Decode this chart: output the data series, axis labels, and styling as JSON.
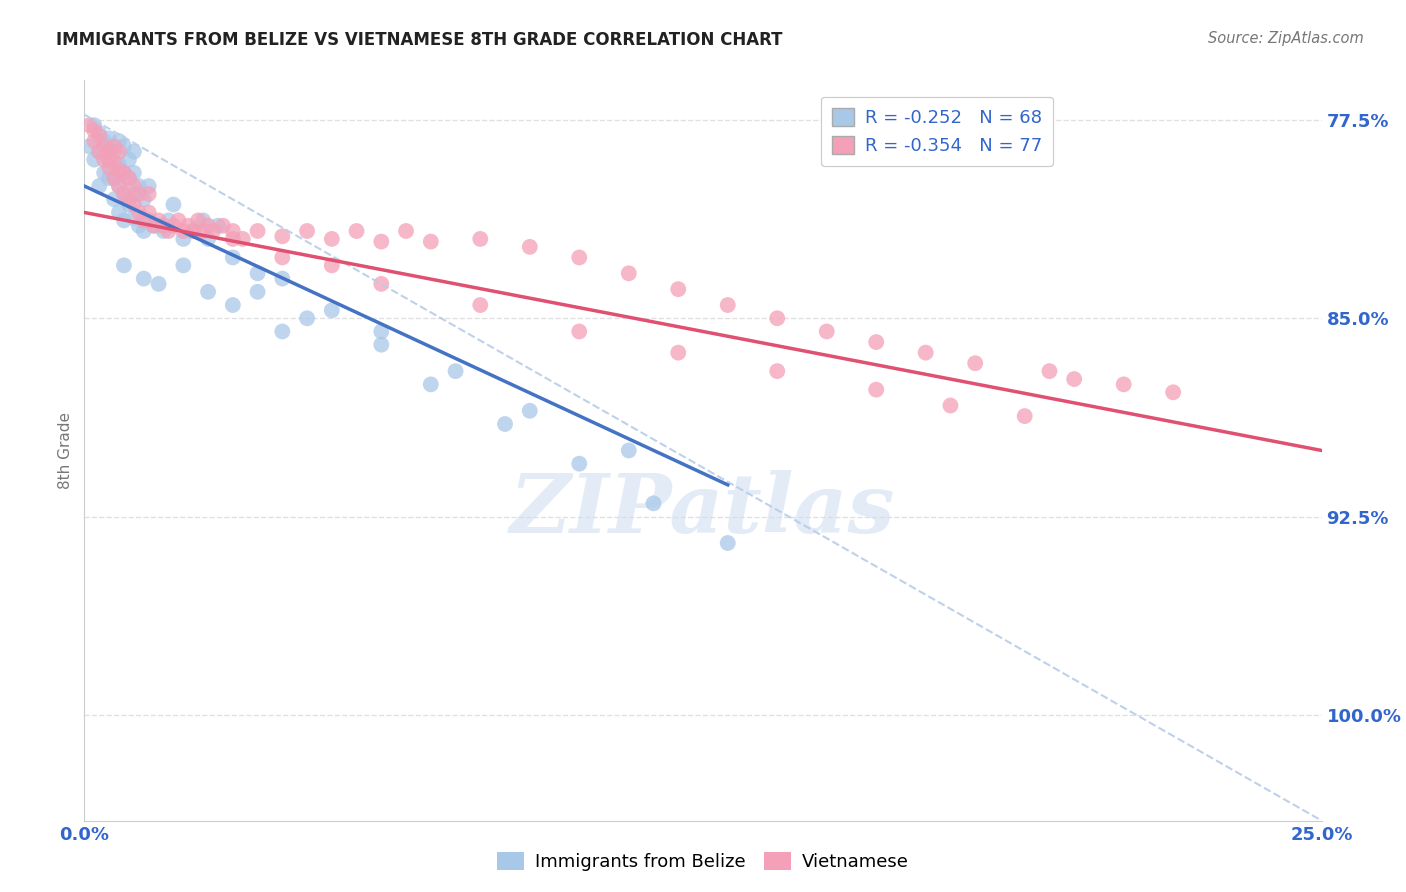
{
  "title": "IMMIGRANTS FROM BELIZE VS VIETNAMESE 8TH GRADE CORRELATION CHART",
  "source": "Source: ZipAtlas.com",
  "ylabel": "8th Grade",
  "yaxis_labels": [
    "100.0%",
    "92.5%",
    "85.0%",
    "77.5%"
  ],
  "legend_entry1": "R = -0.252   N = 68",
  "legend_entry2": "R = -0.354   N = 77",
  "legend_label1": "Immigrants from Belize",
  "legend_label2": "Vietnamese",
  "color_belize": "#a8c8e8",
  "color_vietnamese": "#f4a0b8",
  "color_belize_line": "#4472c4",
  "color_vietnamese_line": "#e05070",
  "color_dashed_line": "#b8cce8",
  "color_axis_labels": "#3366cc",
  "color_title": "#222222",
  "xlim": [
    0.0,
    0.25
  ],
  "ylim": [
    0.735,
    1.015
  ],
  "belize_trend_x": [
    0.0,
    0.13
  ],
  "belize_trend_y": [
    0.975,
    0.862
  ],
  "vietnamese_trend_x": [
    0.0,
    0.25
  ],
  "vietnamese_trend_y": [
    0.965,
    0.875
  ],
  "dashed_trend_x": [
    0.0,
    0.25
  ],
  "dashed_trend_y": [
    1.002,
    0.735
  ],
  "yticks": [
    0.775,
    0.85,
    0.925,
    1.0
  ],
  "xticks": [
    0.0,
    0.05,
    0.1,
    0.15,
    0.2,
    0.25
  ],
  "watermark_text": "ZIPatlas",
  "background_color": "#ffffff",
  "grid_color": "#dddddd",
  "belize_x": [
    0.001,
    0.002,
    0.002,
    0.003,
    0.003,
    0.003,
    0.004,
    0.004,
    0.005,
    0.005,
    0.005,
    0.006,
    0.006,
    0.006,
    0.007,
    0.007,
    0.007,
    0.007,
    0.008,
    0.008,
    0.008,
    0.008,
    0.009,
    0.009,
    0.009,
    0.01,
    0.01,
    0.01,
    0.01,
    0.011,
    0.011,
    0.012,
    0.012,
    0.013,
    0.013,
    0.014,
    0.015,
    0.016,
    0.017,
    0.018,
    0.02,
    0.022,
    0.024,
    0.025,
    0.027,
    0.03,
    0.035,
    0.04,
    0.05,
    0.06,
    0.07,
    0.085,
    0.1,
    0.115,
    0.13,
    0.035,
    0.045,
    0.06,
    0.075,
    0.09,
    0.11,
    0.012,
    0.008,
    0.015,
    0.02,
    0.025,
    0.03,
    0.04
  ],
  "belize_y": [
    0.99,
    0.985,
    0.998,
    0.975,
    0.988,
    0.995,
    0.98,
    0.992,
    0.978,
    0.985,
    0.993,
    0.97,
    0.978,
    0.988,
    0.965,
    0.975,
    0.983,
    0.992,
    0.962,
    0.972,
    0.98,
    0.99,
    0.968,
    0.978,
    0.985,
    0.963,
    0.972,
    0.98,
    0.988,
    0.96,
    0.975,
    0.958,
    0.97,
    0.962,
    0.975,
    0.96,
    0.96,
    0.958,
    0.962,
    0.968,
    0.955,
    0.958,
    0.962,
    0.955,
    0.96,
    0.948,
    0.942,
    0.94,
    0.928,
    0.915,
    0.9,
    0.885,
    0.87,
    0.855,
    0.84,
    0.935,
    0.925,
    0.92,
    0.905,
    0.89,
    0.875,
    0.94,
    0.945,
    0.938,
    0.945,
    0.935,
    0.93,
    0.92
  ],
  "vietnamese_x": [
    0.001,
    0.002,
    0.002,
    0.003,
    0.003,
    0.004,
    0.004,
    0.005,
    0.005,
    0.006,
    0.006,
    0.006,
    0.007,
    0.007,
    0.007,
    0.008,
    0.008,
    0.009,
    0.009,
    0.01,
    0.01,
    0.011,
    0.011,
    0.012,
    0.013,
    0.013,
    0.014,
    0.015,
    0.016,
    0.017,
    0.018,
    0.019,
    0.02,
    0.021,
    0.022,
    0.023,
    0.024,
    0.025,
    0.026,
    0.028,
    0.03,
    0.032,
    0.035,
    0.04,
    0.045,
    0.05,
    0.055,
    0.06,
    0.065,
    0.07,
    0.08,
    0.09,
    0.1,
    0.11,
    0.12,
    0.13,
    0.14,
    0.15,
    0.16,
    0.17,
    0.18,
    0.195,
    0.2,
    0.21,
    0.22,
    0.03,
    0.04,
    0.05,
    0.06,
    0.08,
    0.1,
    0.12,
    0.14,
    0.16,
    0.175,
    0.19,
    0.005
  ],
  "vietnamese_y": [
    0.998,
    0.992,
    0.996,
    0.988,
    0.994,
    0.985,
    0.99,
    0.982,
    0.988,
    0.978,
    0.984,
    0.99,
    0.975,
    0.981,
    0.988,
    0.972,
    0.98,
    0.97,
    0.978,
    0.968,
    0.975,
    0.965,
    0.972,
    0.962,
    0.965,
    0.972,
    0.96,
    0.962,
    0.96,
    0.958,
    0.96,
    0.962,
    0.958,
    0.96,
    0.958,
    0.962,
    0.958,
    0.96,
    0.958,
    0.96,
    0.958,
    0.955,
    0.958,
    0.956,
    0.958,
    0.955,
    0.958,
    0.954,
    0.958,
    0.954,
    0.955,
    0.952,
    0.948,
    0.942,
    0.936,
    0.93,
    0.925,
    0.92,
    0.916,
    0.912,
    0.908,
    0.905,
    0.902,
    0.9,
    0.897,
    0.955,
    0.948,
    0.945,
    0.938,
    0.93,
    0.92,
    0.912,
    0.905,
    0.898,
    0.892,
    0.888,
    0.985
  ]
}
